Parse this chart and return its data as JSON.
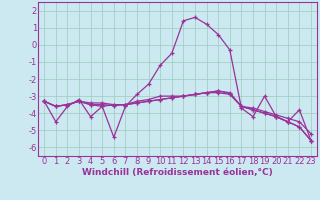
{
  "xlabel": "Windchill (Refroidissement éolien,°C)",
  "bg_color": "#cce8f0",
  "grid_color": "#99ccbb",
  "line_color": "#993399",
  "spine_color": "#993399",
  "xlim_min": -0.5,
  "xlim_max": 23.5,
  "ylim_min": -6.5,
  "ylim_max": 2.5,
  "yticks": [
    2,
    1,
    0,
    -1,
    -2,
    -3,
    -4,
    -5,
    -6
  ],
  "xticks": [
    0,
    1,
    2,
    3,
    4,
    5,
    6,
    7,
    8,
    9,
    10,
    11,
    12,
    13,
    14,
    15,
    16,
    17,
    18,
    19,
    20,
    21,
    22,
    23
  ],
  "series": [
    [
      -3.3,
      -4.5,
      -3.6,
      -3.2,
      -4.2,
      -3.6,
      -5.4,
      -3.6,
      -2.9,
      -2.3,
      -1.2,
      -0.5,
      1.4,
      1.6,
      1.2,
      0.6,
      -0.3,
      -3.7,
      -4.2,
      -3.0,
      -4.2,
      -4.5,
      -3.8,
      -5.6
    ],
    [
      -3.3,
      -3.6,
      -3.5,
      -3.3,
      -3.5,
      -3.5,
      -3.55,
      -3.5,
      -3.4,
      -3.3,
      -3.2,
      -3.1,
      -3.0,
      -2.9,
      -2.8,
      -2.7,
      -2.85,
      -3.6,
      -3.8,
      -4.0,
      -4.2,
      -4.5,
      -4.8,
      -5.6
    ],
    [
      -3.3,
      -3.6,
      -3.5,
      -3.3,
      -3.4,
      -3.4,
      -3.5,
      -3.5,
      -3.3,
      -3.2,
      -3.0,
      -3.0,
      -3.0,
      -2.9,
      -2.8,
      -2.8,
      -2.9,
      -3.6,
      -3.7,
      -3.9,
      -4.1,
      -4.3,
      -4.5,
      -5.2
    ],
    [
      -3.3,
      -3.6,
      -3.5,
      -3.3,
      -3.5,
      -3.6,
      -3.5,
      -3.5,
      -3.4,
      -3.3,
      -3.2,
      -3.1,
      -3.0,
      -2.9,
      -2.8,
      -2.7,
      -2.8,
      -3.6,
      -3.8,
      -4.0,
      -4.2,
      -4.5,
      -4.8,
      -5.6
    ]
  ],
  "tick_fontsize": 6,
  "xlabel_fontsize": 6.5,
  "linewidth": 0.9,
  "markersize": 3.0
}
